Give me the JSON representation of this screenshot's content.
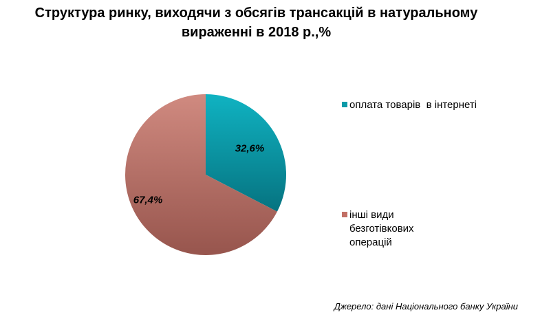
{
  "title_line1": "Структура ринку, виходячи з обсягів трансакцій в натуральному",
  "title_line2": "вираженні в 2018 р.,%",
  "source": "Джерело: дані Національного банку України",
  "chart_data": {
    "type": "pie",
    "title": "Структура ринку, виходячи з обсягів трансакцій в натуральному вираженні в 2018 р.,%",
    "legend_position": "right",
    "slices": [
      {
        "label": "оплата товарів  в інтернеті",
        "value": 32.6,
        "data_label": "32,6%",
        "color": "#0b9aa8"
      },
      {
        "label": "інші види безготівкових операцій",
        "value": 67.4,
        "data_label": "67,4%",
        "color": "#c26f65"
      }
    ]
  }
}
